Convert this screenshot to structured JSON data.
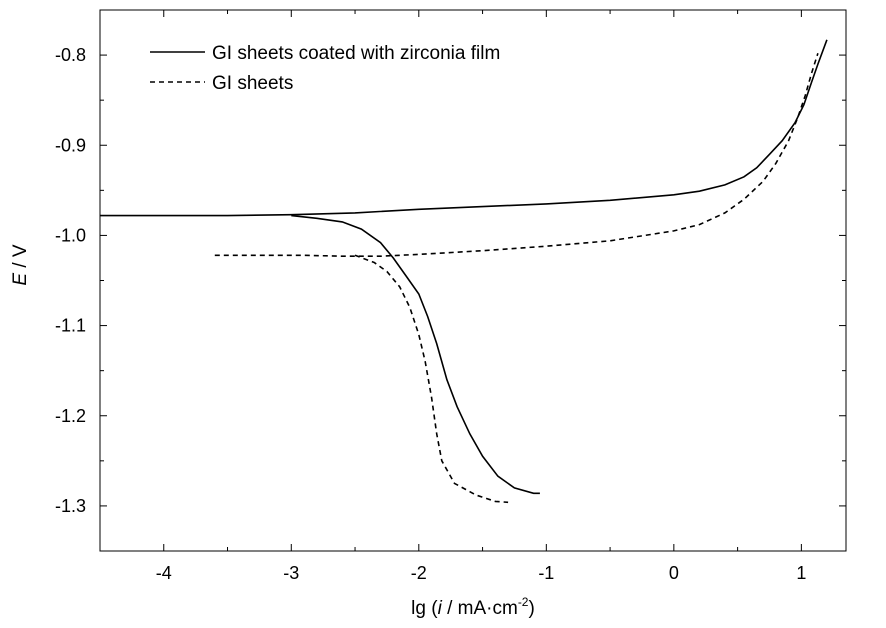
{
  "chart_data": {
    "type": "line",
    "xlabel_prefix": "lg (",
    "xlabel_italic": "i",
    "xlabel_mid": " / mA·cm",
    "xlabel_sup": "-2",
    "xlabel_suffix": ")",
    "ylabel_italic": "E",
    "ylabel_suffix": " / V",
    "xlim": [
      -4.5,
      1.35
    ],
    "ylim": [
      -1.35,
      -0.75
    ],
    "x_ticks": [
      -4,
      -3,
      -2,
      -1,
      0,
      1
    ],
    "x_tick_labels": [
      "-4",
      "-3",
      "-2",
      "-1",
      "0",
      "1"
    ],
    "y_ticks": [
      -0.8,
      -0.9,
      -1.0,
      -1.1,
      -1.2,
      -1.3
    ],
    "y_tick_labels": [
      "-0.8",
      "-0.9",
      "-1.0",
      "-1.1",
      "-1.2",
      "-1.3"
    ],
    "grid": false,
    "legend_position": "top-left",
    "series": [
      {
        "name": "GI sheets coated with zirconia film",
        "style": "solid",
        "color": "#000000",
        "points": [
          [
            -4.5,
            -0.978
          ],
          [
            -4.0,
            -0.978
          ],
          [
            -3.5,
            -0.978
          ],
          [
            -3.0,
            -0.977
          ],
          [
            -2.5,
            -0.975
          ],
          [
            -2.0,
            -0.971
          ],
          [
            -1.5,
            -0.968
          ],
          [
            -1.0,
            -0.965
          ],
          [
            -0.5,
            -0.961
          ],
          [
            0.0,
            -0.955
          ],
          [
            0.2,
            -0.951
          ],
          [
            0.4,
            -0.944
          ],
          [
            0.55,
            -0.935
          ],
          [
            0.65,
            -0.925
          ],
          [
            0.75,
            -0.91
          ],
          [
            0.85,
            -0.895
          ],
          [
            0.95,
            -0.875
          ],
          [
            1.02,
            -0.855
          ],
          [
            1.08,
            -0.83
          ],
          [
            1.13,
            -0.81
          ],
          [
            1.2,
            -0.783
          ]
        ],
        "cathodic_branch": [
          [
            -3.0,
            -0.978
          ],
          [
            -2.8,
            -0.981
          ],
          [
            -2.6,
            -0.985
          ],
          [
            -2.45,
            -0.993
          ],
          [
            -2.3,
            -1.008
          ],
          [
            -2.2,
            -1.025
          ],
          [
            -2.1,
            -1.045
          ],
          [
            -2.0,
            -1.065
          ],
          [
            -1.93,
            -1.09
          ],
          [
            -1.86,
            -1.12
          ],
          [
            -1.78,
            -1.16
          ],
          [
            -1.7,
            -1.19
          ],
          [
            -1.6,
            -1.22
          ],
          [
            -1.5,
            -1.245
          ],
          [
            -1.38,
            -1.267
          ],
          [
            -1.25,
            -1.28
          ],
          [
            -1.1,
            -1.286
          ],
          [
            -1.05,
            -1.286
          ]
        ]
      },
      {
        "name": "GI sheets",
        "style": "dashed",
        "color": "#000000",
        "points": [
          [
            -3.6,
            -1.022
          ],
          [
            -3.2,
            -1.022
          ],
          [
            -2.9,
            -1.022
          ],
          [
            -2.6,
            -1.023
          ],
          [
            -2.3,
            -1.023
          ],
          [
            -2.0,
            -1.021
          ],
          [
            -1.5,
            -1.017
          ],
          [
            -1.0,
            -1.012
          ],
          [
            -0.5,
            -1.006
          ],
          [
            0.0,
            -0.995
          ],
          [
            0.2,
            -0.988
          ],
          [
            0.4,
            -0.975
          ],
          [
            0.55,
            -0.96
          ],
          [
            0.7,
            -0.94
          ],
          [
            0.8,
            -0.92
          ],
          [
            0.9,
            -0.895
          ],
          [
            0.97,
            -0.87
          ],
          [
            1.03,
            -0.845
          ],
          [
            1.08,
            -0.82
          ],
          [
            1.13,
            -0.798
          ]
        ],
        "cathodic_branch": [
          [
            -2.5,
            -1.022
          ],
          [
            -2.35,
            -1.03
          ],
          [
            -2.25,
            -1.04
          ],
          [
            -2.15,
            -1.057
          ],
          [
            -2.07,
            -1.08
          ],
          [
            -2.0,
            -1.11
          ],
          [
            -1.95,
            -1.14
          ],
          [
            -1.9,
            -1.18
          ],
          [
            -1.86,
            -1.22
          ],
          [
            -1.82,
            -1.25
          ],
          [
            -1.72,
            -1.275
          ],
          [
            -1.55,
            -1.288
          ],
          [
            -1.4,
            -1.295
          ],
          [
            -1.3,
            -1.296
          ]
        ]
      }
    ]
  }
}
